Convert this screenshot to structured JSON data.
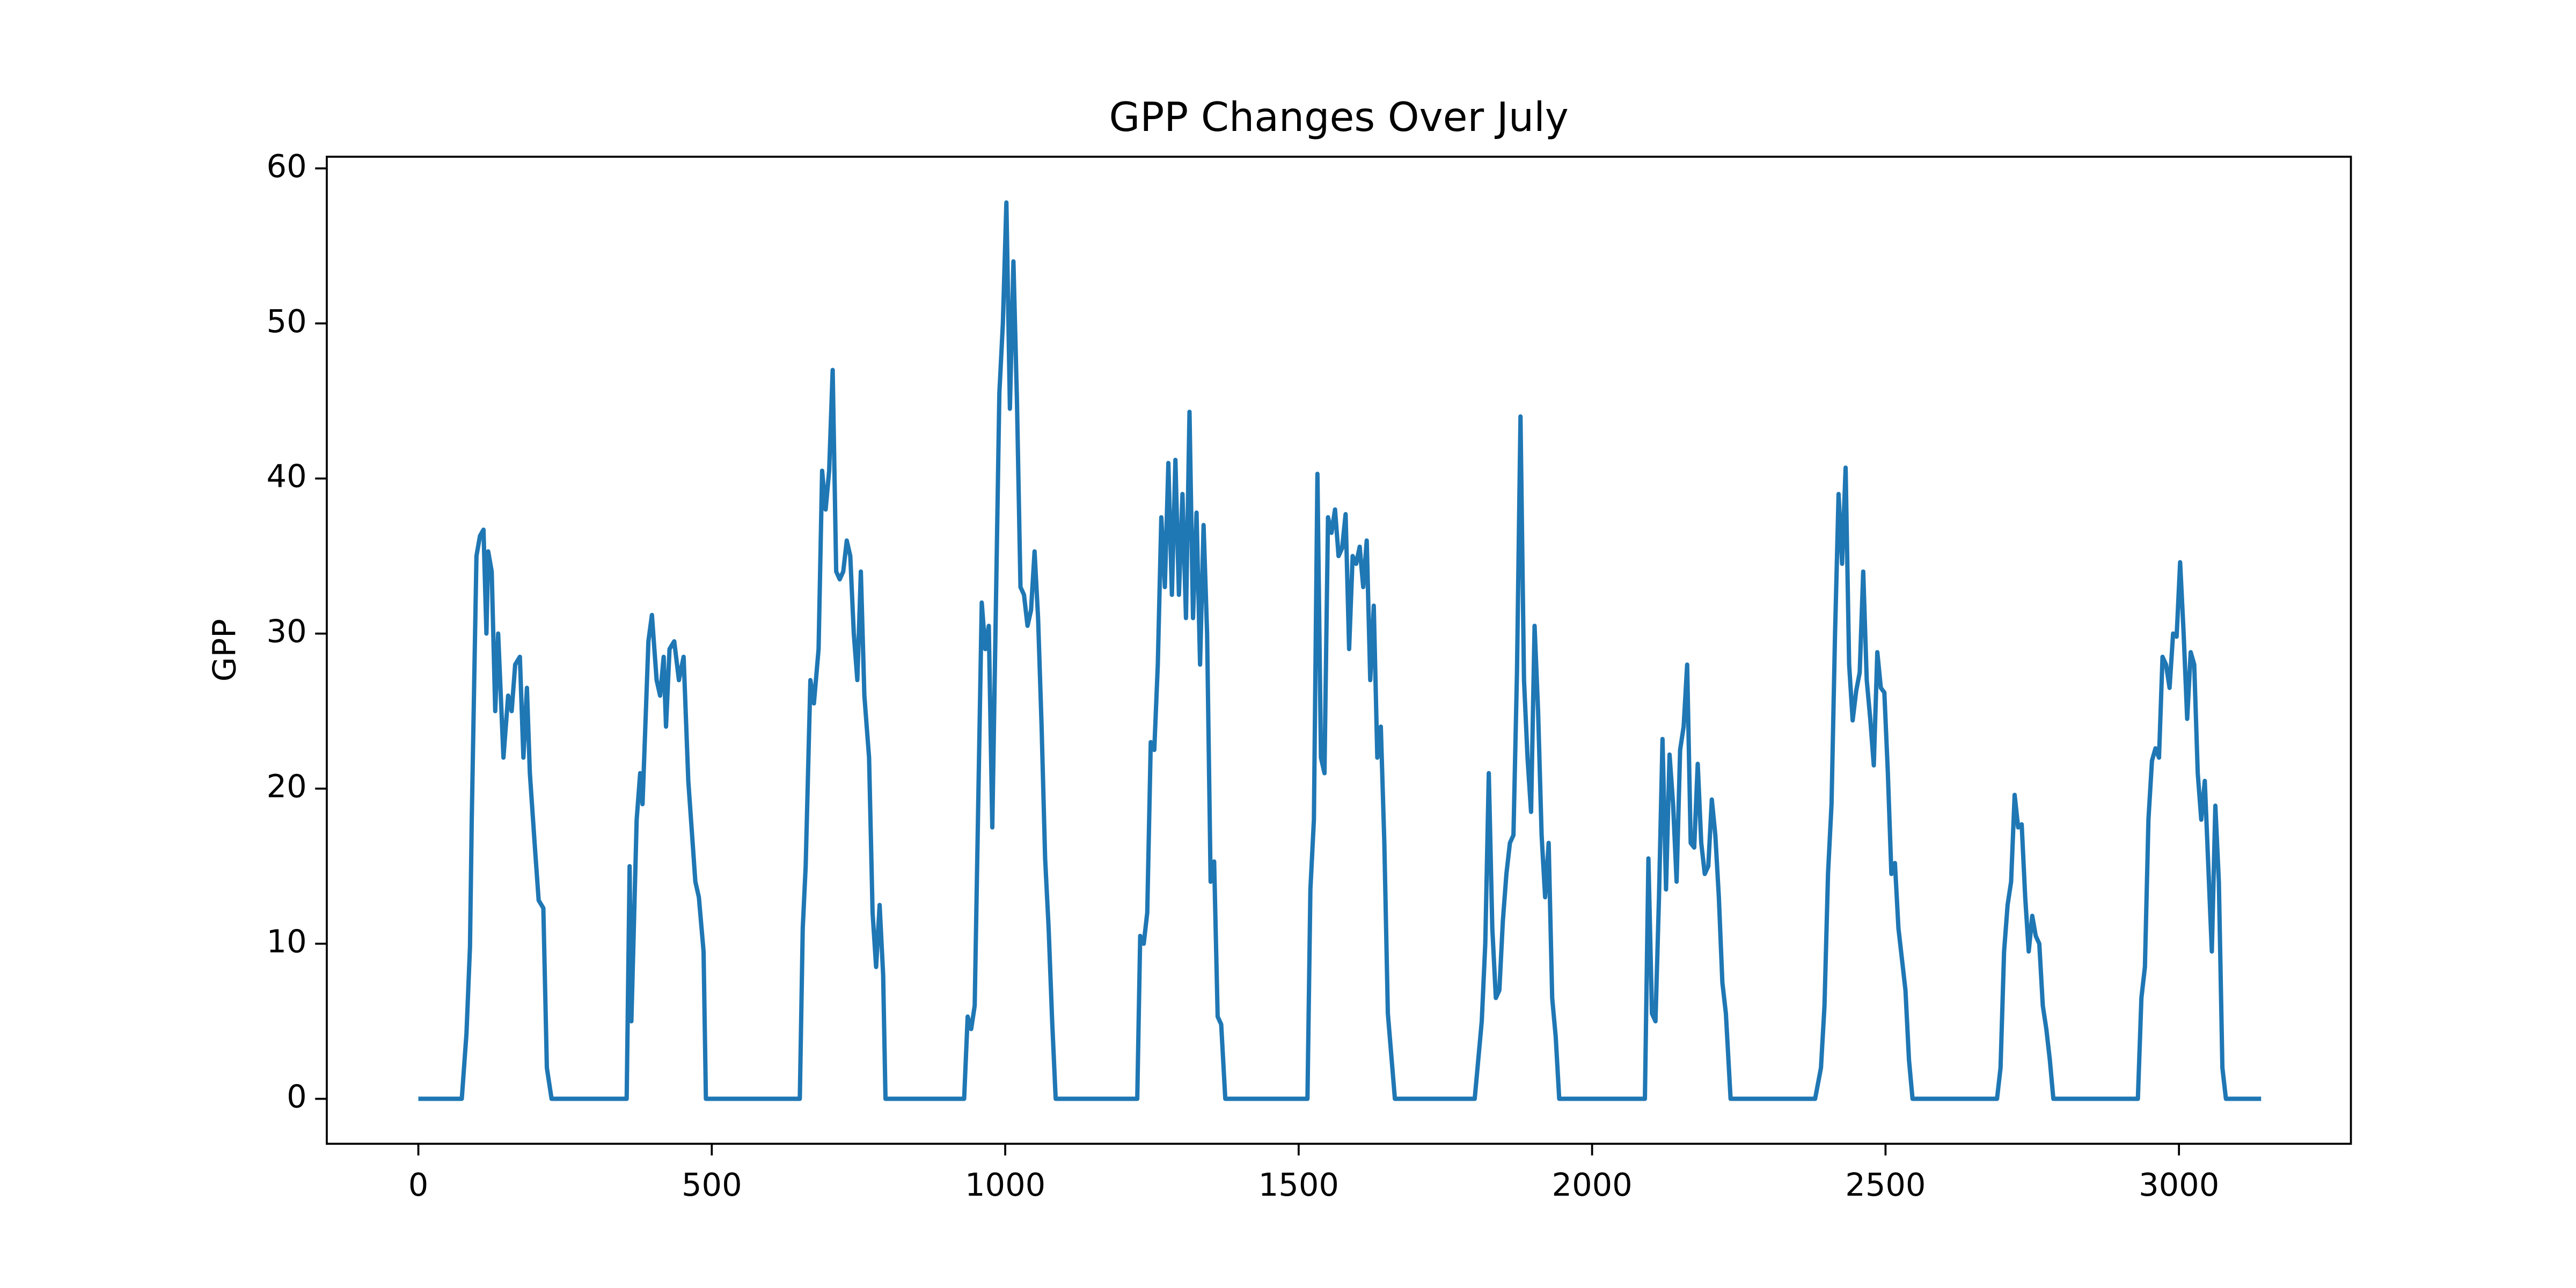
{
  "chart_data": {
    "type": "line",
    "title": "GPP Changes Over July",
    "ylabel": "GPP",
    "color": "#1f77b4",
    "xlim": [
      -156,
      3293
    ],
    "ylim": [
      -2.9,
      60.75
    ],
    "xticks": [
      0,
      500,
      1000,
      1500,
      2000,
      2500,
      3000
    ],
    "yticks": [
      0,
      10,
      20,
      30,
      40,
      50,
      60
    ],
    "grid": false,
    "x": [
      0,
      74,
      82,
      88,
      91,
      99,
      105,
      111,
      116,
      119,
      125,
      131,
      136,
      145,
      153,
      159,
      165,
      173,
      179,
      185,
      190,
      199,
      205,
      213,
      219,
      227,
      355,
      360,
      363,
      372,
      378,
      382,
      392,
      398,
      406,
      412,
      418,
      422,
      428,
      436,
      444,
      452,
      460,
      472,
      478,
      486,
      490,
      650,
      655,
      660,
      668,
      674,
      682,
      688,
      694,
      700,
      706,
      712,
      718,
      724,
      730,
      736,
      742,
      748,
      754,
      760,
      768,
      774,
      780,
      786,
      792,
      796,
      930,
      936,
      942,
      948,
      960,
      966,
      972,
      978,
      990,
      996,
      1002,
      1008,
      1014,
      1020,
      1026,
      1032,
      1038,
      1044,
      1050,
      1056,
      1062,
      1068,
      1074,
      1080,
      1086,
      1225,
      1230,
      1236,
      1242,
      1248,
      1254,
      1260,
      1266,
      1272,
      1278,
      1284,
      1290,
      1296,
      1302,
      1308,
      1314,
      1320,
      1326,
      1332,
      1338,
      1344,
      1350,
      1356,
      1362,
      1368,
      1375,
      1515,
      1520,
      1526,
      1532,
      1538,
      1544,
      1550,
      1556,
      1562,
      1568,
      1574,
      1580,
      1586,
      1592,
      1598,
      1604,
      1610,
      1616,
      1622,
      1628,
      1634,
      1640,
      1646,
      1652,
      1664,
      1800,
      1812,
      1818,
      1824,
      1830,
      1836,
      1842,
      1848,
      1854,
      1860,
      1866,
      1872,
      1878,
      1884,
      1890,
      1896,
      1902,
      1908,
      1914,
      1920,
      1926,
      1932,
      1938,
      1944,
      2090,
      2096,
      2102,
      2108,
      2114,
      2120,
      2126,
      2132,
      2138,
      2144,
      2150,
      2156,
      2162,
      2168,
      2174,
      2180,
      2186,
      2192,
      2198,
      2204,
      2210,
      2216,
      2222,
      2228,
      2236,
      2380,
      2390,
      2396,
      2402,
      2408,
      2414,
      2420,
      2426,
      2432,
      2438,
      2444,
      2450,
      2456,
      2462,
      2468,
      2474,
      2480,
      2486,
      2492,
      2498,
      2504,
      2510,
      2516,
      2522,
      2534,
      2540,
      2546,
      2690,
      2696,
      2702,
      2708,
      2714,
      2720,
      2726,
      2732,
      2738,
      2744,
      2750,
      2756,
      2762,
      2768,
      2774,
      2780,
      2786,
      2930,
      2936,
      2942,
      2948,
      2954,
      2960,
      2966,
      2972,
      2978,
      2984,
      2990,
      2996,
      3002,
      3008,
      3014,
      3020,
      3026,
      3032,
      3038,
      3044,
      3050,
      3056,
      3062,
      3068,
      3074,
      3080,
      3140
    ],
    "values": [
      0,
      0,
      4.2,
      9.8,
      18,
      35,
      36.3,
      36.7,
      30,
      35.3,
      34,
      25,
      30,
      22,
      26,
      25,
      28,
      28.5,
      22,
      26.5,
      21,
      16,
      12.8,
      12.3,
      2,
      0,
      0,
      15,
      5,
      18,
      21,
      19,
      29.5,
      31.2,
      27,
      26,
      28.5,
      24,
      29,
      29.5,
      27,
      28.5,
      20.5,
      14,
      13,
      9.5,
      0,
      0,
      11,
      15,
      27,
      25.5,
      29,
      40.5,
      38,
      40.5,
      47,
      34,
      33.5,
      34,
      36,
      35,
      30,
      27,
      34,
      26,
      22,
      12,
      8.5,
      12.5,
      8,
      0,
      0,
      5.3,
      4.5,
      6,
      32,
      29,
      30.5,
      17.5,
      45.5,
      50,
      57.8,
      44.5,
      54,
      45,
      33,
      32.5,
      30.5,
      31.5,
      35.3,
      31,
      24,
      15.5,
      11,
      5,
      0,
      0,
      10.5,
      10,
      12,
      23,
      22.5,
      28,
      37.5,
      33,
      41,
      32.5,
      41.2,
      32.5,
      39,
      31,
      44.3,
      31,
      37.8,
      28,
      37,
      30,
      14,
      15.3,
      5.3,
      4.8,
      0,
      0,
      13.5,
      18,
      40.3,
      22,
      21,
      37.5,
      36.5,
      38,
      35,
      35.5,
      37.7,
      29,
      35,
      34.5,
      35.6,
      33,
      36,
      27,
      31.8,
      22,
      24,
      16.5,
      5.5,
      0,
      0,
      5,
      10,
      21,
      11,
      6.5,
      7,
      11.5,
      14.5,
      16.5,
      17,
      27.5,
      44,
      27,
      22,
      18.5,
      30.5,
      25,
      17,
      13,
      16.5,
      6.5,
      4,
      0,
      0,
      15.5,
      5.5,
      5,
      13,
      23.2,
      13.5,
      22.2,
      19,
      14,
      22.5,
      24,
      28,
      16.5,
      16.2,
      21.6,
      16.5,
      14.5,
      15,
      19.3,
      17,
      13,
      7.5,
      5.5,
      0,
      0,
      2,
      6,
      14.5,
      19,
      30,
      39,
      34.5,
      40.7,
      28,
      24.4,
      26.3,
      27.5,
      34,
      27,
      24.5,
      21.5,
      28.8,
      26.5,
      26.2,
      21,
      14.5,
      15.2,
      11,
      7,
      2.5,
      0,
      0,
      2,
      9.5,
      12.5,
      14,
      19.6,
      17.5,
      17.7,
      13,
      9.5,
      11.8,
      10.5,
      10,
      6,
      4.5,
      2.5,
      0,
      0,
      6.5,
      8.5,
      18,
      21.8,
      22.6,
      22,
      28.5,
      28,
      26.5,
      30,
      29.8,
      34.6,
      30,
      24.5,
      28.8,
      28,
      21,
      18,
      20.5,
      15,
      9.5,
      18.9,
      14,
      2,
      0,
      0
    ]
  }
}
